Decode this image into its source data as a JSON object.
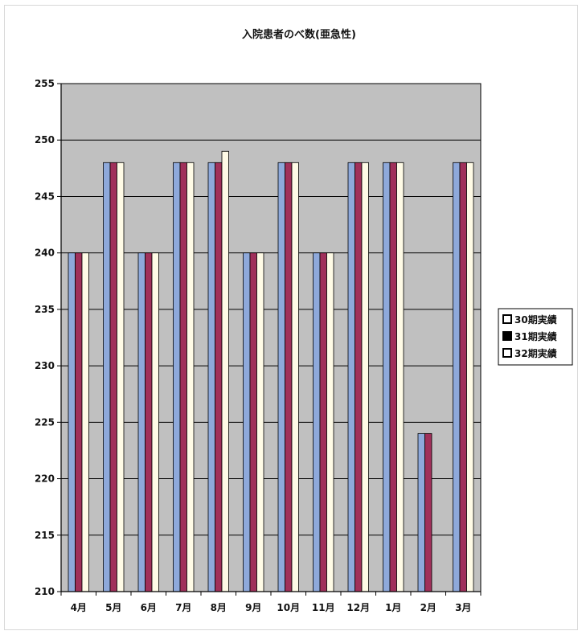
{
  "chart_data": {
    "type": "bar",
    "title": "入院患者のべ数(亜急性)",
    "categories": [
      "4月",
      "5月",
      "6月",
      "7月",
      "8月",
      "9月",
      "10月",
      "11月",
      "12月",
      "1月",
      "2月",
      "3月"
    ],
    "series": [
      {
        "name": "30期実績",
        "values": [
          240,
          248,
          240,
          248,
          248,
          240,
          248,
          240,
          248,
          248,
          224,
          248
        ]
      },
      {
        "name": "31期実績",
        "values": [
          240,
          248,
          240,
          248,
          248,
          240,
          248,
          240,
          248,
          248,
          224,
          248
        ]
      },
      {
        "name": "32期実績",
        "values": [
          240,
          248,
          240,
          248,
          249,
          240,
          248,
          240,
          248,
          248,
          null,
          248
        ]
      }
    ],
    "xlabel": "",
    "ylabel": "",
    "ylim": [
      210,
      255
    ],
    "yticks": [
      210,
      215,
      220,
      225,
      230,
      235,
      240,
      245,
      250,
      255
    ],
    "grid": true,
    "legend": "right",
    "colors": {
      "plot_background": "#c0c0c0",
      "grid": "#000000",
      "series": [
        "#8ea9db",
        "#a0305a",
        "#fffbe6"
      ]
    }
  }
}
